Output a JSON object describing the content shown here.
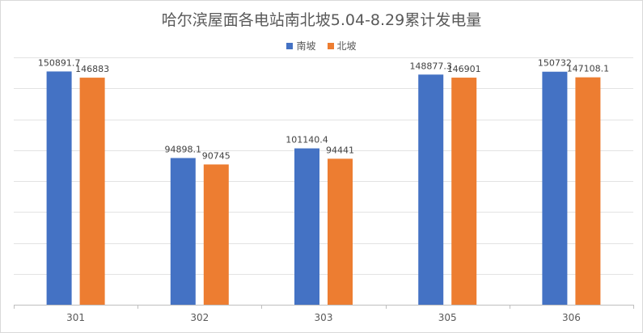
{
  "chart_data": {
    "type": "bar",
    "title": "哈尔滨屋面各电站南北坡5.04-8.29累计发电量",
    "categories": [
      "301",
      "302",
      "303",
      "305",
      "306"
    ],
    "series": [
      {
        "name": "南坡",
        "color": "#4472c4",
        "values": [
          150891.7,
          94898.1,
          101140.4,
          148877.3,
          150732
        ],
        "labels": [
          "150891.7",
          "94898.1",
          "101140.4",
          "148877.3",
          "150732"
        ]
      },
      {
        "name": "北坡",
        "color": "#ed7d31",
        "values": [
          146883,
          90745,
          94441,
          146901,
          147108.1
        ],
        "labels": [
          "146883",
          "90745",
          "94441",
          "146901",
          "147108.1"
        ]
      }
    ],
    "ylim": [
      0,
      160000
    ],
    "grid": true,
    "legend_position": "top"
  }
}
